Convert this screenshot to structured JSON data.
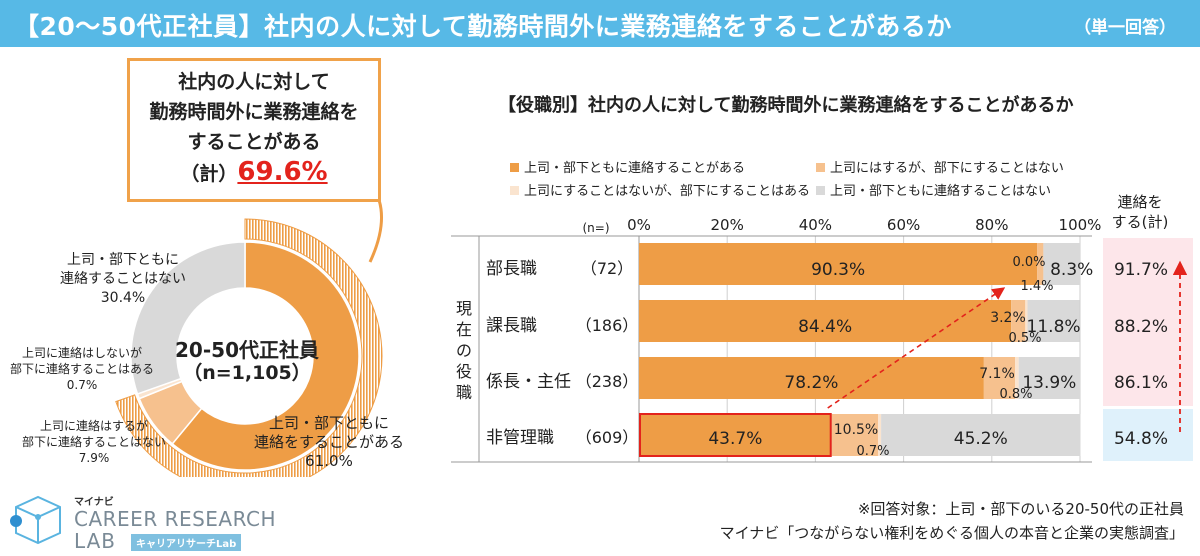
{
  "header": {
    "title": "【20～50代正社員】社内の人に対して勤務時間外に業務連絡をすることがあるか",
    "note": "（単一回答）"
  },
  "colors": {
    "banner": "#57b9e6",
    "both": "#ee9d46",
    "superior_only": "#f6c18e",
    "subordinate_only": "#fae4cf",
    "neither": "#d9d9d9",
    "highlight_red": "#e3231c",
    "total_pink": "#fde6ea",
    "total_blue": "#dff1fb"
  },
  "callout": {
    "lines": [
      "社内の人に対して",
      "勤務時間外に業務連絡を",
      "することがある"
    ],
    "total_prefix": "（計）",
    "total_value": "69.6%"
  },
  "donut": {
    "center_title": "20-50代正社員",
    "center_n": "（n=1,105）",
    "labels": {
      "both": [
        "上司・部下ともに",
        "連絡をすることがある",
        "61.0%"
      ],
      "superior_only": [
        "上司に連絡はするが",
        "部下に連絡することはない",
        "7.9%"
      ],
      "subordinate_only": [
        "上司に連絡はしないが",
        "部下に連絡することはある",
        "0.7%"
      ],
      "neither": [
        "上司・部下ともに",
        "連絡することはない",
        "30.4%"
      ]
    }
  },
  "chart_data": [
    {
      "type": "pie",
      "categories": [
        "上司・部下ともに連絡をすることがある",
        "上司に連絡はするが部下に連絡することはない",
        "上司に連絡はしないが部下に連絡することはある",
        "上司・部下ともに連絡することはない"
      ],
      "values": [
        61.0,
        7.9,
        0.7,
        30.4
      ]
    },
    {
      "type": "bar",
      "title": "【役職別】社内の人に対して勤務時間外に業務連絡をすることがあるか",
      "n_label": "(n=)",
      "y_axis_label": "現在の役職",
      "total_header": [
        "連絡を",
        "する(計)"
      ],
      "categories": [
        "部長職",
        "課長職",
        "係長・主任",
        "非管理職"
      ],
      "n": [
        "（72）",
        "（186）",
        "（238）",
        "（609）"
      ],
      "xticks": [
        "0%",
        "20%",
        "40%",
        "60%",
        "80%",
        "100%"
      ],
      "xlim": [
        0,
        100
      ],
      "legend_placement": "top",
      "series": [
        {
          "name": "上司・部下ともに連絡することがある",
          "values": [
            90.3,
            84.4,
            78.2,
            43.7
          ]
        },
        {
          "name": "上司にはするが、部下にすることはない",
          "values": [
            1.4,
            3.2,
            7.1,
            10.5
          ]
        },
        {
          "name": "上司にすることはないが、部下にすることはある",
          "values": [
            0.0,
            0.5,
            0.8,
            0.7
          ]
        },
        {
          "name": "上司・部下ともに連絡することはない",
          "values": [
            8.3,
            11.8,
            13.9,
            45.2
          ]
        }
      ],
      "totals": [
        "91.7%",
        "88.2%",
        "86.1%",
        "54.8%"
      ]
    }
  ],
  "footer": {
    "note": "※回答対象：上司・部下のいる20-50代の正社員",
    "source": "マイナビ「つながらない権利をめぐる個人の本音と企業の実態調査」"
  },
  "logo": {
    "brand": "マイナビ",
    "line1": "CAREER RESEARCH",
    "line2": "LAB",
    "kana": "キャリアリサーチLab"
  }
}
